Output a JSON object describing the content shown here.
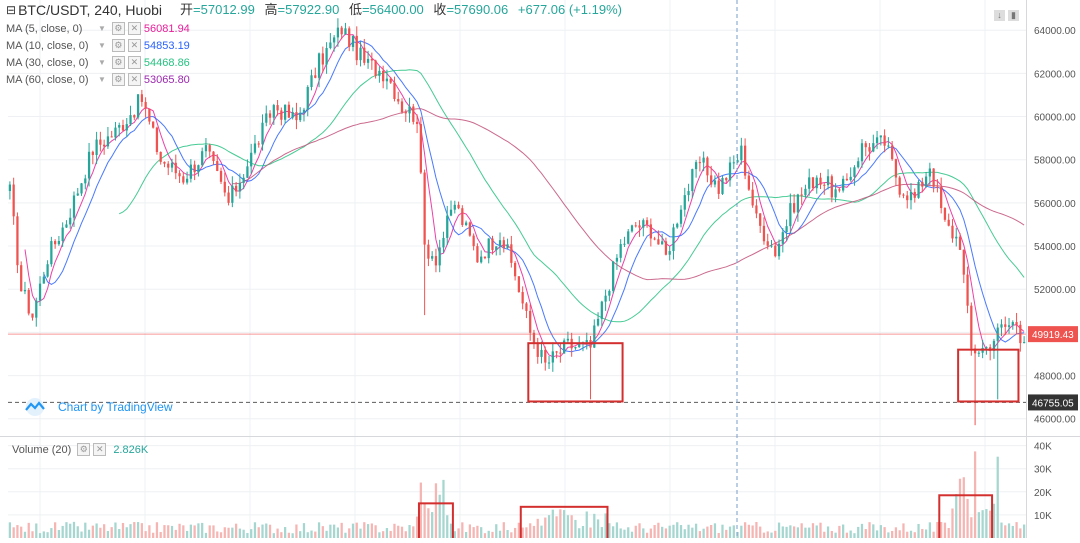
{
  "header": {
    "symbol": "BTC/USDT, 240, Huobi",
    "open_label": "开",
    "open": "=57012.99",
    "high_label": "高",
    "high": "=57922.90",
    "low_label": "低",
    "low": "=56400.00",
    "close_label": "收",
    "close": "=57690.06",
    "change": "+677.06 (+1.19%)"
  },
  "ma_legend": [
    {
      "label": "MA (5, close, 0)",
      "value": "56081.94",
      "color": "#e91e9a"
    },
    {
      "label": "MA (10, close, 0)",
      "value": "54853.19",
      "color": "#2962ff"
    },
    {
      "label": "MA (30, close, 0)",
      "value": "54468.86",
      "color": "#26c281"
    },
    {
      "label": "MA (60, close, 0)",
      "value": "53065.80",
      "color": "#9c27b0"
    }
  ],
  "volume_legend": {
    "label": "Volume (20)",
    "value": "2.826K",
    "color": "#26a69a"
  },
  "branding": "Chart by TradingView",
  "colors": {
    "up": "#26a69a",
    "down": "#ef5350",
    "annotation": "#d32f2f",
    "grid": "#eef0f3"
  },
  "chart_data": {
    "type": "candlestick",
    "price_axis": {
      "ticks": [
        46000,
        48000,
        50000,
        52000,
        54000,
        56000,
        58000,
        60000,
        62000,
        64000
      ],
      "tick_labels": [
        "46000.00",
        "48000.00",
        "50000.00",
        "52000.00",
        "54000.00",
        "56000.00",
        "58000.00",
        "60000.00",
        "62000.00",
        "64000.00"
      ],
      "ylim": [
        45200,
        65400
      ]
    },
    "price_markers": [
      {
        "value": 49919.43,
        "label": "49919.43",
        "color": "#ef5350"
      },
      {
        "value": 46755.05,
        "label": "46755.05",
        "color": "#333333"
      }
    ],
    "volume_axis": {
      "ticks": [
        10000,
        20000,
        30000,
        40000
      ],
      "tick_labels": [
        "10K",
        "20K",
        "30K",
        "40K"
      ]
    },
    "anchors": [
      [
        0,
        56500
      ],
      [
        3,
        52000
      ],
      [
        6,
        50800
      ],
      [
        10,
        53500
      ],
      [
        15,
        55200
      ],
      [
        22,
        58500
      ],
      [
        28,
        59300
      ],
      [
        35,
        60800
      ],
      [
        40,
        58000
      ],
      [
        46,
        57200
      ],
      [
        52,
        58400
      ],
      [
        58,
        56000
      ],
      [
        64,
        58200
      ],
      [
        70,
        60500
      ],
      [
        76,
        59800
      ],
      [
        82,
        62500
      ],
      [
        88,
        64100
      ],
      [
        94,
        62500
      ],
      [
        100,
        62000
      ],
      [
        104,
        60500
      ],
      [
        108,
        60000
      ],
      [
        110,
        54000
      ],
      [
        113,
        53500
      ],
      [
        118,
        56000
      ],
      [
        124,
        53500
      ],
      [
        130,
        54600
      ],
      [
        134,
        52700
      ],
      [
        138,
        50000
      ],
      [
        142,
        48500
      ],
      [
        148,
        49400
      ],
      [
        154,
        49300
      ],
      [
        158,
        51800
      ],
      [
        162,
        54000
      ],
      [
        166,
        55000
      ],
      [
        170,
        54800
      ],
      [
        174,
        53500
      ],
      [
        178,
        56000
      ],
      [
        183,
        57900
      ],
      [
        188,
        56700
      ],
      [
        194,
        58400
      ],
      [
        198,
        55200
      ],
      [
        203,
        53800
      ],
      [
        208,
        56000
      ],
      [
        214,
        57300
      ],
      [
        220,
        56300
      ],
      [
        226,
        58600
      ],
      [
        232,
        58800
      ],
      [
        236,
        56800
      ],
      [
        240,
        56200
      ],
      [
        244,
        57800
      ],
      [
        248,
        55000
      ],
      [
        252,
        54200
      ],
      [
        255,
        49200
      ],
      [
        259,
        49300
      ],
      [
        263,
        50200
      ],
      [
        267,
        50500
      ],
      [
        268,
        49920
      ]
    ],
    "annotations": [
      {
        "type": "box",
        "pane": "price",
        "x_range": [
          138,
          163
        ],
        "y_range": [
          46800,
          49500
        ]
      },
      {
        "type": "box",
        "pane": "price",
        "x_range": [
          252,
          268
        ],
        "y_range": [
          46800,
          49200
        ]
      },
      {
        "type": "box",
        "pane": "volume",
        "x_range": [
          109,
          118
        ],
        "y_range": [
          0,
          15000
        ]
      },
      {
        "type": "box",
        "pane": "volume",
        "x_range": [
          136,
          159
        ],
        "y_range": [
          0,
          13500
        ]
      },
      {
        "type": "box",
        "pane": "volume",
        "x_range": [
          247,
          261
        ],
        "y_range": [
          0,
          18500
        ]
      }
    ],
    "title": "",
    "xlabel": "",
    "ylabel": ""
  }
}
